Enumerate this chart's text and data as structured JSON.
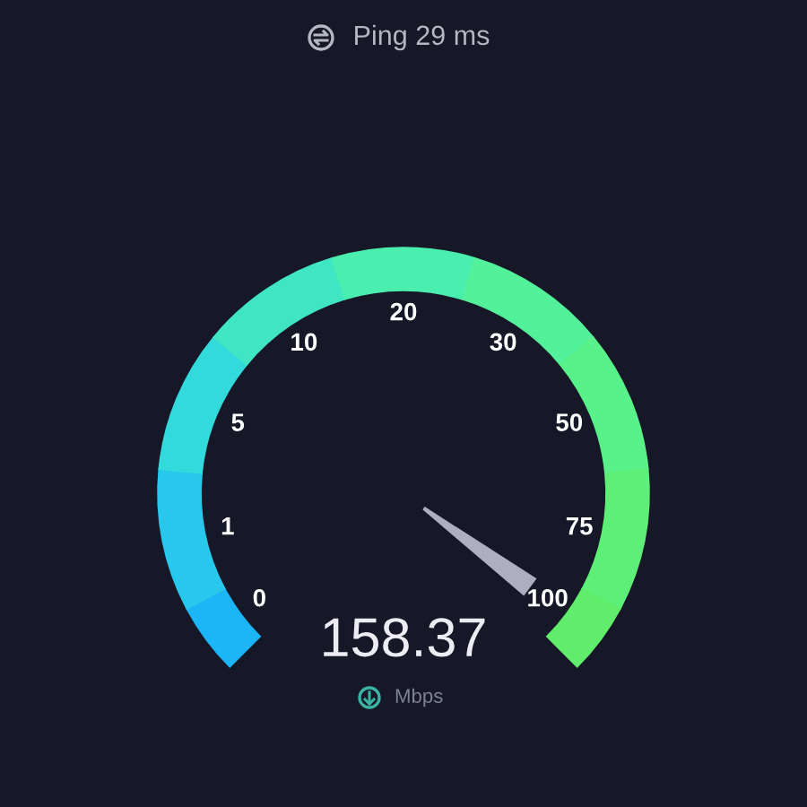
{
  "chart_data": {
    "type": "donut",
    "title": "Ping 29 ms",
    "categories": [
      "0",
      "1",
      "5",
      "10",
      "20",
      "30",
      "50",
      "75",
      "100"
    ],
    "values": [
      6.25,
      12.5,
      12.5,
      12.5,
      12.5,
      12.5,
      12.5,
      12.5,
      6.25
    ],
    "colors": [
      "#1cb5f5",
      "#27c8ec",
      "#33dadb",
      "#40e6c4",
      "#4aeeae",
      "#53f19a",
      "#59f189",
      "#5def78",
      "#60ed6c"
    ],
    "needle": "100",
    "annotations": [
      "158.37",
      "Mbps"
    ]
  }
}
